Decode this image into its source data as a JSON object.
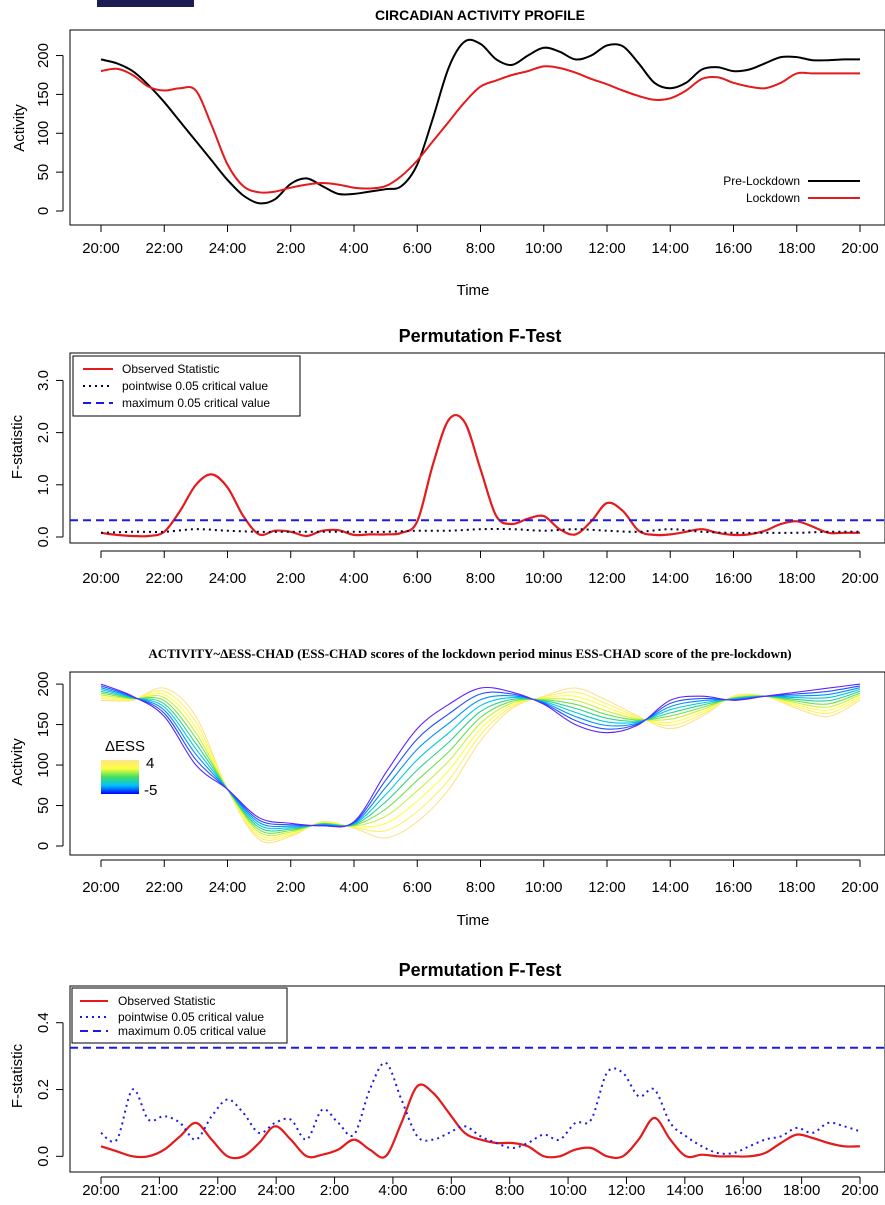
{
  "colors": {
    "pre": "#000000",
    "lock": "#e41a1c",
    "point": "#1a1ae8",
    "max": "#1a1ae8"
  },
  "chart_data": [
    {
      "type": "line",
      "title": "CIRCADIAN ACTIVITY PROFILE",
      "xlabel": "Time",
      "ylabel": "Activity",
      "ylim": [
        0,
        220
      ],
      "yticks": [
        0,
        50,
        100,
        150,
        200
      ],
      "xtick_labels": [
        "20:00",
        "22:00",
        "24:00",
        "2:00",
        "4:00",
        "6:00",
        "8:00",
        "10:00",
        "12:00",
        "14:00",
        "16:00",
        "18:00",
        "20:00"
      ],
      "legend": {
        "placement": "bottom-right",
        "entries": [
          "Pre-Lockdown",
          "Lockdown"
        ]
      },
      "series": [
        {
          "name": "Pre-Lockdown",
          "color": "#000000",
          "x": [
            0,
            0.5,
            1,
            1.5,
            2,
            2.5,
            3,
            3.5,
            4,
            4.5,
            5,
            5.5,
            6,
            6.5,
            7,
            7.5,
            8,
            8.5,
            9,
            9.5,
            10,
            10.5,
            11,
            11.5,
            12,
            12.5,
            13,
            13.5,
            14,
            14.5,
            15,
            15.5,
            16,
            16.5,
            17,
            17.5,
            18,
            18.5,
            19,
            19.5,
            20,
            20.5,
            21,
            21.5,
            22,
            22.5,
            23,
            23.5,
            24
          ],
          "y": [
            195,
            190,
            180,
            162,
            140,
            115,
            90,
            65,
            40,
            20,
            10,
            15,
            35,
            42,
            32,
            22,
            22,
            25,
            28,
            32,
            60,
            120,
            185,
            218,
            215,
            195,
            188,
            200,
            210,
            205,
            195,
            200,
            213,
            212,
            190,
            165,
            158,
            165,
            182,
            185,
            180,
            182,
            190,
            198,
            198,
            194,
            194,
            195,
            195
          ]
        },
        {
          "name": "Lockdown",
          "color": "#e41a1c",
          "x": [
            0,
            0.5,
            1,
            1.5,
            2,
            2.5,
            3,
            3.5,
            4,
            4.5,
            5,
            5.5,
            6,
            6.5,
            7,
            7.5,
            8,
            8.5,
            9,
            9.5,
            10,
            10.5,
            11,
            11.5,
            12,
            12.5,
            13,
            13.5,
            14,
            14.5,
            15,
            15.5,
            16,
            16.5,
            17,
            17.5,
            18,
            18.5,
            19,
            19.5,
            20,
            20.5,
            21,
            21.5,
            22,
            22.5,
            23,
            23.5,
            24
          ],
          "y": [
            180,
            183,
            175,
            160,
            155,
            158,
            155,
            110,
            60,
            32,
            24,
            25,
            30,
            34,
            36,
            34,
            30,
            29,
            32,
            45,
            65,
            90,
            115,
            140,
            160,
            168,
            175,
            180,
            186,
            184,
            178,
            170,
            163,
            155,
            148,
            143,
            145,
            155,
            170,
            172,
            165,
            160,
            158,
            165,
            177,
            177,
            177,
            177,
            177
          ]
        }
      ]
    },
    {
      "type": "line",
      "title": "Permutation F-Test",
      "xlabel": "",
      "ylabel": "F-statistic",
      "ylim": [
        0,
        3.2
      ],
      "yticks": [
        0.0,
        1.0,
        2.0,
        3.0
      ],
      "ytick_labels": [
        "0.0",
        "1.0",
        "2.0",
        "3.0"
      ],
      "xtick_labels": [
        "20:00",
        "22:00",
        "24:00",
        "2:00",
        "4:00",
        "6:00",
        "8:00",
        "10:00",
        "12:00",
        "14:00",
        "16:00",
        "18:00",
        "20:00"
      ],
      "legend": {
        "placement": "top-left",
        "entries": [
          "Observed Statistic",
          "pointwise 0.05 critical value",
          "maximum 0.05 critical value"
        ]
      },
      "series": [
        {
          "name": "Observed Statistic",
          "color": "#e41a1c",
          "x": [
            0,
            0.5,
            1,
            1.5,
            2,
            2.5,
            3,
            3.5,
            4,
            4.5,
            5,
            5.5,
            6,
            6.5,
            7,
            7.5,
            8,
            8.5,
            9,
            9.5,
            10,
            10.5,
            11,
            11.5,
            12,
            12.5,
            13,
            13.5,
            14,
            14.5,
            15,
            15.5,
            16,
            16.5,
            17,
            17.5,
            18,
            18.5,
            19,
            19.5,
            20,
            20.5,
            21,
            21.5,
            22,
            22.5,
            23,
            23.5,
            24
          ],
          "y": [
            0.08,
            0.04,
            0.02,
            0.02,
            0.1,
            0.5,
            1.0,
            1.2,
            0.95,
            0.4,
            0.05,
            0.12,
            0.1,
            0.02,
            0.12,
            0.13,
            0.04,
            0.05,
            0.05,
            0.08,
            0.3,
            1.4,
            2.25,
            2.2,
            1.3,
            0.4,
            0.25,
            0.35,
            0.4,
            0.15,
            0.05,
            0.3,
            0.65,
            0.5,
            0.12,
            0.04,
            0.05,
            0.1,
            0.15,
            0.08,
            0.04,
            0.05,
            0.12,
            0.25,
            0.3,
            0.2,
            0.08,
            0.08,
            0.08
          ]
        },
        {
          "name": "pointwise 0.05 critical value",
          "color": "#000033",
          "x": [
            0,
            1,
            2,
            3,
            4,
            5,
            6,
            7,
            8,
            9,
            10,
            11,
            12,
            13,
            14,
            15,
            16,
            17,
            18,
            19,
            20,
            21,
            22,
            23,
            24
          ],
          "y": [
            0.08,
            0.1,
            0.1,
            0.15,
            0.12,
            0.1,
            0.1,
            0.1,
            0.1,
            0.1,
            0.12,
            0.12,
            0.15,
            0.15,
            0.12,
            0.15,
            0.12,
            0.1,
            0.15,
            0.1,
            0.08,
            0.08,
            0.08,
            0.1,
            0.1
          ]
        },
        {
          "name": "maximum 0.05 critical value",
          "color": "#1a1ae8",
          "x": [
            0,
            24
          ],
          "y": [
            0.32,
            0.32
          ]
        }
      ]
    },
    {
      "type": "line",
      "title": "ACTIVITY~ΔESS-CHAD (ESS-CHAD scores of the lockdown period minus ESS-CHAD score of the pre-lockdown)",
      "xlabel": "Time",
      "ylabel": "Activity",
      "ylim": [
        0,
        210
      ],
      "yticks": [
        0,
        50,
        100,
        150,
        200
      ],
      "xtick_labels": [
        "20:00",
        "22:00",
        "24:00",
        "2:00",
        "4:00",
        "6:00",
        "8:00",
        "10:00",
        "12:00",
        "14:00",
        "16:00",
        "18:00",
        "20:00"
      ],
      "colorbar": {
        "label": "ΔESS",
        "max_label": "4",
        "min_label": "-5",
        "range": [
          -5,
          4
        ]
      },
      "curves_delta": [
        4,
        3,
        2,
        1,
        0,
        -1,
        -2,
        -3,
        -4,
        -5
      ],
      "x": [
        0,
        1,
        2,
        3,
        4,
        5,
        6,
        7,
        8,
        9,
        10,
        11,
        12,
        13,
        14,
        15,
        16,
        17,
        18,
        19,
        20,
        21,
        22,
        23,
        24
      ],
      "series_at_minus5": [
        200,
        185,
        160,
        100,
        70,
        35,
        28,
        25,
        30,
        90,
        145,
        175,
        195,
        190,
        175,
        150,
        140,
        150,
        180,
        185,
        180,
        185,
        190,
        195,
        200
      ],
      "series_at_4": [
        180,
        180,
        195,
        160,
        70,
        8,
        12,
        30,
        22,
        10,
        30,
        70,
        130,
        170,
        185,
        195,
        180,
        160,
        145,
        160,
        185,
        185,
        170,
        160,
        180
      ]
    },
    {
      "type": "line",
      "title": "Permutation F-Test",
      "xlabel": "",
      "ylabel": "F-statistic",
      "ylim": [
        -0.02,
        0.48
      ],
      "yticks": [
        0.0,
        0.2,
        0.4
      ],
      "ytick_labels": [
        "0.0",
        "0.2",
        "0.4"
      ],
      "xtick_labels": [
        "20:00",
        "21:00",
        "22:00",
        "24:00",
        "2:00",
        "4:00",
        "6:00",
        "8:00",
        "10:00",
        "12:00",
        "14:00",
        "16:00",
        "18:00",
        "20:00"
      ],
      "legend": {
        "placement": "top-left",
        "entries": [
          "Observed Statistic",
          "pointwise 0.05 critical value",
          "maximum 0.05 critical value"
        ]
      },
      "series": [
        {
          "name": "Observed Statistic",
          "color": "#e41a1c",
          "x": [
            0,
            0.5,
            1,
            1.5,
            2,
            2.5,
            3,
            3.5,
            4,
            4.5,
            5,
            5.5,
            6,
            6.5,
            7,
            7.5,
            8,
            8.5,
            9,
            9.5,
            10,
            10.5,
            11,
            11.5,
            12,
            12.5,
            13,
            13.5,
            14,
            14.5,
            15,
            15.5,
            16,
            16.5,
            17,
            17.5,
            18,
            18.5,
            19,
            19.5,
            20,
            20.5,
            21,
            21.5,
            22,
            22.5,
            23,
            23.5,
            24
          ],
          "y": [
            0.03,
            0.015,
            0.0,
            0.0,
            0.02,
            0.06,
            0.1,
            0.05,
            0.0,
            0.0,
            0.04,
            0.09,
            0.05,
            0.0,
            0.005,
            0.02,
            0.05,
            0.02,
            0.0,
            0.1,
            0.21,
            0.19,
            0.13,
            0.07,
            0.05,
            0.04,
            0.04,
            0.03,
            0.0,
            0.0,
            0.02,
            0.025,
            0.0,
            0.0,
            0.05,
            0.115,
            0.05,
            0.0,
            0.005,
            0.0,
            0.0,
            0.0,
            0.01,
            0.04,
            0.065,
            0.055,
            0.04,
            0.03,
            0.03
          ]
        },
        {
          "name": "pointwise 0.05 critical value",
          "color": "#1a1ae8",
          "x": [
            0,
            0.5,
            1,
            1.5,
            2,
            2.5,
            3,
            3.5,
            4,
            4.5,
            5,
            5.5,
            6,
            6.5,
            7,
            7.5,
            8,
            8.5,
            9,
            9.5,
            10,
            10.5,
            11,
            11.5,
            12,
            12.5,
            13,
            13.5,
            14,
            14.5,
            15,
            15.5,
            16,
            16.5,
            17,
            17.5,
            18,
            18.5,
            19,
            19.5,
            20,
            20.5,
            21,
            21.5,
            22,
            22.5,
            23,
            23.5,
            24
          ],
          "y": [
            0.07,
            0.05,
            0.2,
            0.11,
            0.12,
            0.1,
            0.05,
            0.12,
            0.17,
            0.13,
            0.07,
            0.1,
            0.11,
            0.05,
            0.14,
            0.1,
            0.065,
            0.2,
            0.28,
            0.17,
            0.06,
            0.05,
            0.07,
            0.09,
            0.06,
            0.04,
            0.025,
            0.04,
            0.065,
            0.05,
            0.1,
            0.11,
            0.25,
            0.25,
            0.18,
            0.2,
            0.1,
            0.06,
            0.03,
            0.01,
            0.01,
            0.03,
            0.05,
            0.06,
            0.085,
            0.07,
            0.1,
            0.09,
            0.075
          ]
        },
        {
          "name": "maximum 0.05 critical value",
          "color": "#1a1ae8",
          "x": [
            0,
            24
          ],
          "y": [
            0.325,
            0.325
          ]
        }
      ]
    }
  ]
}
